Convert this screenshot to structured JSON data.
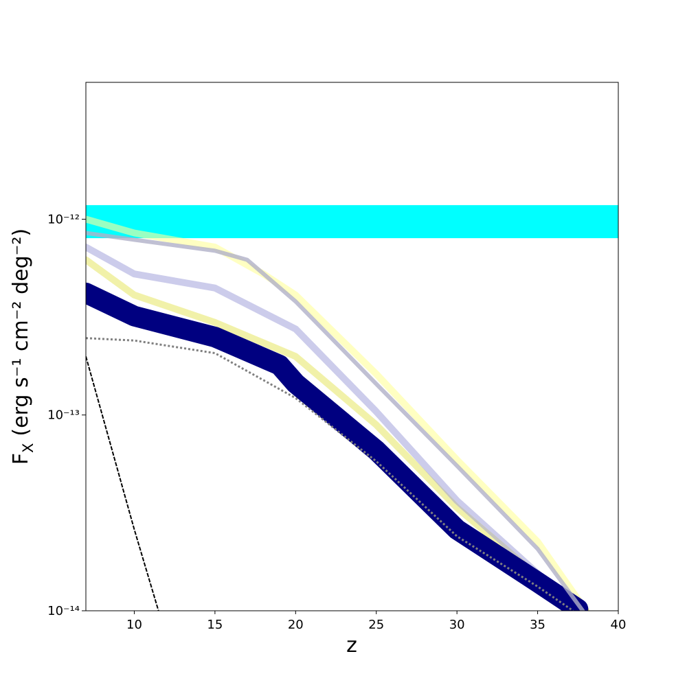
{
  "chart_data": {
    "type": "line",
    "xlabel": "z",
    "ylabel": {
      "main": "F",
      "sub": "X",
      "rest": "(erg s⁻¹ cm⁻² deg⁻²)"
    },
    "xlim": [
      7,
      40
    ],
    "xticks": [
      10,
      15,
      20,
      25,
      30,
      35,
      40
    ],
    "ylim": [
      1e-14,
      5e-12
    ],
    "log_y": true,
    "yticks": [
      {
        "value": 1e-14,
        "label": "10⁻¹⁴"
      },
      {
        "value": 1e-13,
        "label": "10⁻¹³"
      },
      {
        "value": 1e-12,
        "label": "10⁻¹²"
      }
    ],
    "band": {
      "range": [
        8e-13,
        1.18e-12
      ],
      "color": "#00ffff"
    },
    "series": [
      {
        "color": "#ffff99",
        "opacity": 0.6,
        "width": 10,
        "x": [
          7,
          10,
          15,
          18,
          20,
          25,
          30,
          35,
          38
        ],
        "values": [
          1e-12,
          8.5e-13,
          7.2e-13,
          5.25e-13,
          4.1e-13,
          1.62e-13,
          5.9e-14,
          2.25e-14,
          1e-14
        ]
      },
      {
        "color": "#e8e870",
        "opacity": 0.6,
        "width": 10,
        "x": [
          7,
          10,
          15,
          20,
          25,
          30,
          35,
          38
        ],
        "values": [
          6.2e-13,
          4.1e-13,
          2.97e-13,
          1.99e-13,
          8.9e-14,
          3.36e-14,
          1.5e-14,
          1e-14
        ]
      },
      {
        "color": "#9a9ad8",
        "opacity": 0.5,
        "width": 10,
        "x": [
          7,
          10,
          15,
          20,
          25,
          30,
          35,
          37.8
        ],
        "values": [
          7.2e-13,
          5.25e-13,
          4.45e-13,
          2.75e-13,
          1.04e-13,
          3.65e-14,
          1.55e-14,
          1e-14
        ]
      },
      {
        "color": "#000080",
        "opacity": 1,
        "width": 30,
        "x": [
          7,
          10,
          15,
          19,
          20,
          25,
          30,
          35,
          37.5
        ],
        "values": [
          4.2e-13,
          3.2e-13,
          2.5e-13,
          1.8e-13,
          1.45e-13,
          6.6e-14,
          2.6e-14,
          1.4e-14,
          1.02e-14
        ]
      },
      {
        "color": "#b0b0c8",
        "opacity": 0.8,
        "width": 6,
        "x": [
          7,
          10,
          15,
          17,
          20,
          25,
          30,
          35,
          37.8
        ],
        "values": [
          8.5e-13,
          7.85e-13,
          6.9e-13,
          6.2e-13,
          3.8e-13,
          1.44e-13,
          5.5e-14,
          2.07e-14,
          1e-14
        ]
      },
      {
        "color": "#808080",
        "opacity": 1,
        "width": 3,
        "dash": "3 3",
        "x": [
          7,
          10,
          15,
          20,
          25,
          30,
          35,
          37.2
        ],
        "values": [
          2.47e-13,
          2.4e-13,
          2.07e-13,
          1.22e-13,
          5.8e-14,
          2.4e-14,
          1.33e-14,
          1e-14
        ]
      },
      {
        "color": "#000000",
        "opacity": 1,
        "width": 2,
        "dash": "6 2",
        "x": [
          7,
          10,
          11.5
        ],
        "values": [
          1.99e-13,
          2.6e-14,
          1e-14
        ]
      }
    ]
  }
}
